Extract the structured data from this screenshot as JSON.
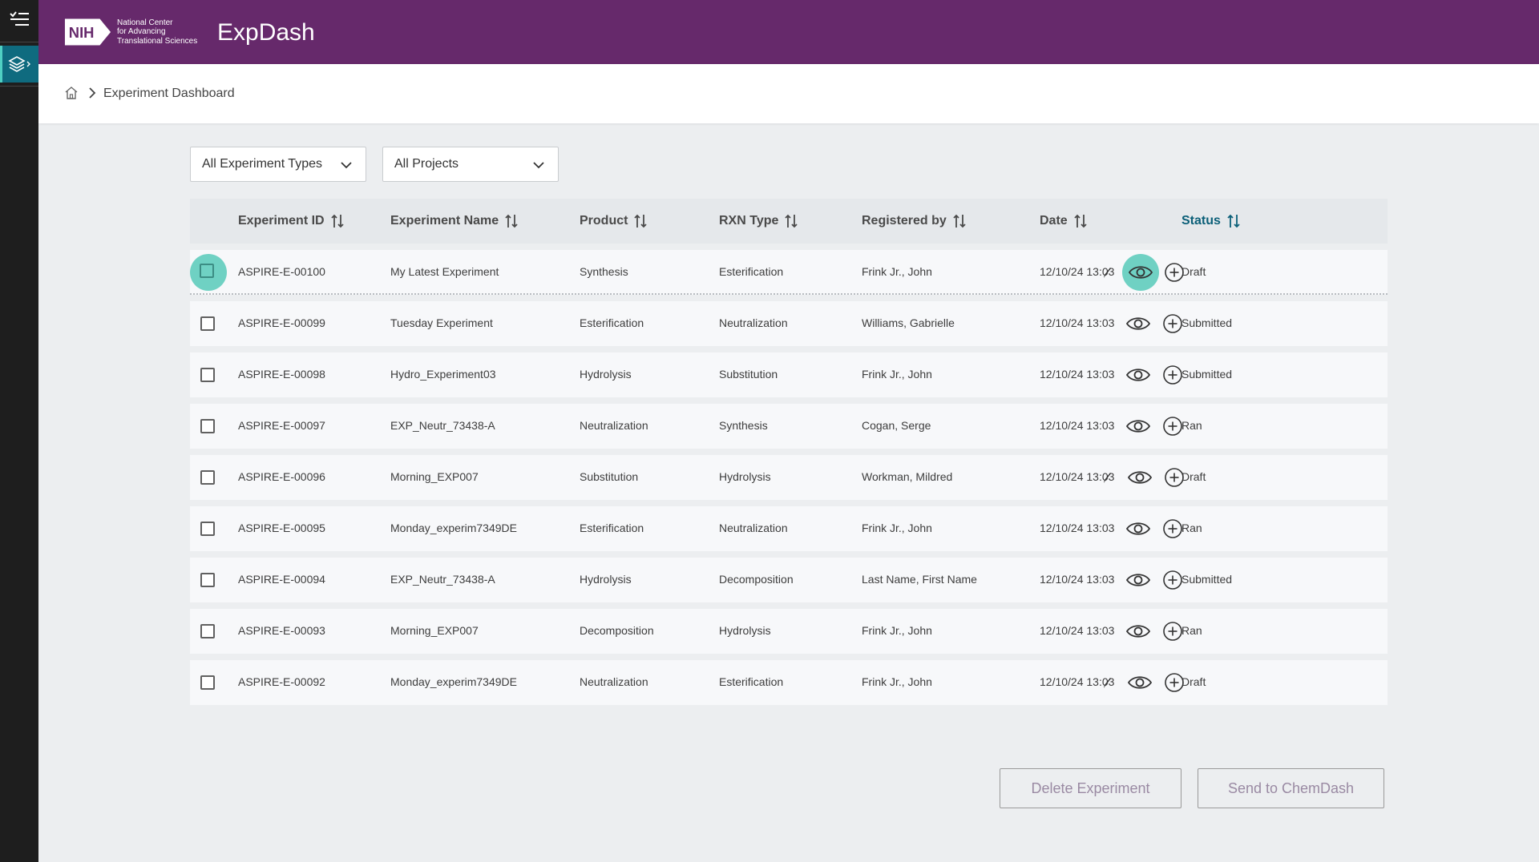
{
  "app": {
    "title": "ExpDash",
    "org_logo_text": "NIH",
    "org_lines": [
      "National Center",
      "for Advancing",
      "Translational Sciences"
    ]
  },
  "colors": {
    "header": "#66296b",
    "rail": "#1e1e1e",
    "rail_active": "#0f6b7f",
    "highlight": "#6fd1c3",
    "status_header": "#0b5f78"
  },
  "breadcrumb": {
    "home_icon": "home-icon",
    "current": "Experiment Dashboard"
  },
  "filters": {
    "experiment_type": "All Experiment Types",
    "project": "All Projects"
  },
  "table": {
    "columns": [
      "Experiment ID",
      "Experiment Name",
      "Product",
      "RXN Type",
      "Registered by",
      "Date",
      "Status"
    ],
    "active_sort_column": "Status",
    "rows": [
      {
        "id": "ASPIRE-E-00100",
        "name": "My Latest Experiment",
        "product": "Synthesis",
        "rxn": "Esterification",
        "registered_by": "Frink Jr., John",
        "date": "12/10/24 13:03",
        "status": "Draft"
      },
      {
        "id": "ASPIRE-E-00099",
        "name": "Tuesday Experiment",
        "product": "Esterification",
        "rxn": "Neutralization",
        "registered_by": "Williams, Gabrielle",
        "date": "12/10/24 13:03",
        "status": "Submitted"
      },
      {
        "id": "ASPIRE-E-00098",
        "name": "Hydro_Experiment03",
        "product": "Hydrolysis",
        "rxn": "Substitution",
        "registered_by": "Frink Jr., John",
        "date": "12/10/24 13:03",
        "status": "Submitted"
      },
      {
        "id": "ASPIRE-E-00097",
        "name": "EXP_Neutr_73438-A",
        "product": "Neutralization",
        "rxn": "Synthesis",
        "registered_by": "Cogan, Serge",
        "date": "12/10/24 13:03",
        "status": "Ran"
      },
      {
        "id": "ASPIRE-E-00096",
        "name": "Morning_EXP007",
        "product": "Substitution",
        "rxn": "Hydrolysis",
        "registered_by": "Workman, Mildred",
        "date": "12/10/24 13:03",
        "status": "Draft"
      },
      {
        "id": "ASPIRE-E-00095",
        "name": "Monday_experim7349DE",
        "product": "Esterification",
        "rxn": "Neutralization",
        "registered_by": "Frink Jr., John",
        "date": "12/10/24 13:03",
        "status": "Ran"
      },
      {
        "id": "ASPIRE-E-00094",
        "name": "EXP_Neutr_73438-A",
        "product": "Hydrolysis",
        "rxn": "Decomposition",
        "registered_by": "Last Name, First Name",
        "date": "12/10/24 13:03",
        "status": "Submitted"
      },
      {
        "id": "ASPIRE-E-00093",
        "name": "Morning_EXP007",
        "product": "Decomposition",
        "rxn": "Hydrolysis",
        "registered_by": "Frink Jr., John",
        "date": "12/10/24 13:03",
        "status": "Ran"
      },
      {
        "id": "ASPIRE-E-00092",
        "name": "Monday_experim7349DE",
        "product": "Neutralization",
        "rxn": "Esterification",
        "registered_by": "Frink Jr., John",
        "date": "12/10/24 13:03",
        "status": "Draft"
      }
    ]
  },
  "actions": {
    "delete_label": "Delete Experiment",
    "send_label": "Send to ChemDash"
  }
}
